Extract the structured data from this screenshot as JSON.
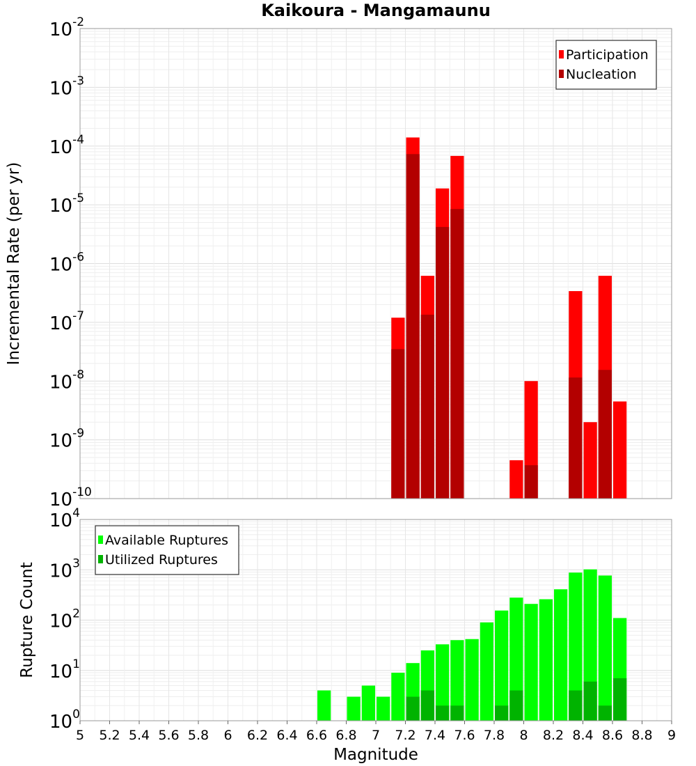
{
  "chart_data": [
    {
      "type": "bar",
      "title": "Kaikoura - Mangamaunu",
      "xlabel": "",
      "ylabel": "Incremental Rate (per yr)",
      "yscale": "log",
      "ylim_exp": [
        -10,
        -2
      ],
      "xlim": [
        5,
        9
      ],
      "bin_width": 0.1,
      "legend_position": "top-right",
      "grid": true,
      "series": [
        {
          "name": "Participation",
          "color": "#ff0000",
          "x": [
            7.15,
            7.25,
            7.35,
            7.45,
            7.55,
            7.95,
            8.05,
            8.35,
            8.45,
            8.55,
            8.65
          ],
          "values": [
            1.2e-07,
            0.00014,
            6.2e-07,
            1.9e-05,
            6.8e-05,
            4.5e-10,
            1e-08,
            3.4e-07,
            2e-09,
            6.2e-07,
            4.5e-09
          ]
        },
        {
          "name": "Nucleation",
          "color": "#b30000",
          "x": [
            7.15,
            7.25,
            7.35,
            7.45,
            7.55,
            8.05,
            8.35,
            8.55
          ],
          "values": [
            3.5e-08,
            7.3e-05,
            1.35e-07,
            4.2e-06,
            8.5e-06,
            3.7e-10,
            1.15e-08,
            1.55e-08
          ]
        }
      ]
    },
    {
      "type": "bar",
      "title": "",
      "xlabel": "Magnitude",
      "ylabel": "Rupture Count",
      "yscale": "log",
      "ylim_exp": [
        0,
        4
      ],
      "xlim": [
        5,
        9
      ],
      "bin_width": 0.1,
      "legend_position": "top-left",
      "grid": true,
      "x_ticks": [
        "5",
        "5.2",
        "5.4",
        "5.6",
        "5.8",
        "6",
        "6.2",
        "6.4",
        "6.6",
        "6.8",
        "7",
        "7.2",
        "7.4",
        "7.6",
        "7.8",
        "8",
        "8.2",
        "8.4",
        "8.6",
        "8.8",
        "9"
      ],
      "series": [
        {
          "name": "Available Ruptures",
          "color": "#00ff00",
          "x": [
            6.65,
            6.85,
            6.95,
            7.05,
            7.15,
            7.25,
            7.35,
            7.45,
            7.55,
            7.65,
            7.75,
            7.85,
            7.95,
            8.05,
            8.15,
            8.25,
            8.35,
            8.45,
            8.55,
            8.65
          ],
          "values": [
            4,
            3,
            5,
            3,
            9,
            14,
            25,
            33,
            40,
            42,
            90,
            155,
            280,
            210,
            260,
            410,
            880,
            1020,
            770,
            110
          ]
        },
        {
          "name": "Utilized Ruptures",
          "color": "#00b300",
          "x": [
            7.15,
            7.25,
            7.35,
            7.45,
            7.55,
            7.85,
            7.95,
            8.05,
            8.15,
            8.35,
            8.45,
            8.55,
            8.65
          ],
          "values": [
            1,
            3,
            4,
            2,
            2,
            2,
            4,
            1,
            1,
            4,
            6,
            2,
            7
          ]
        }
      ]
    }
  ]
}
